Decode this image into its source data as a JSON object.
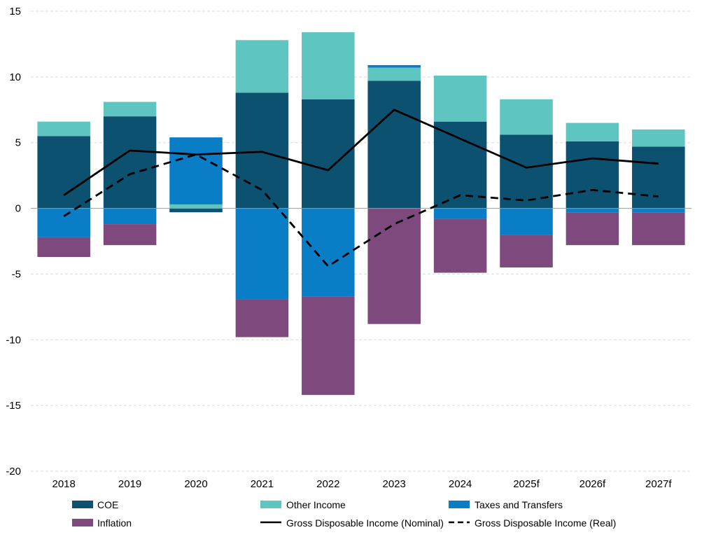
{
  "chart_data": {
    "type": "bar",
    "stacked": true,
    "categories": [
      "2018",
      "2019",
      "2020",
      "2021",
      "2022",
      "2023",
      "2024",
      "2025f",
      "2026f",
      "2027f"
    ],
    "ylim": [
      -20,
      15
    ],
    "yticks": [
      15,
      10,
      5,
      0,
      -5,
      -10,
      -15,
      -20
    ],
    "grid": true,
    "legend_position": "bottom",
    "series": [
      {
        "name": "COE",
        "color": "#0d5170",
        "values": [
          5.5,
          7.0,
          -0.3,
          8.8,
          8.3,
          9.7,
          6.6,
          5.6,
          5.1,
          4.7
        ]
      },
      {
        "name": "Other Income",
        "color": "#5ec5c0",
        "values": [
          1.1,
          1.1,
          0.3,
          4.0,
          5.1,
          1.0,
          3.5,
          2.7,
          1.4,
          1.3
        ]
      },
      {
        "name": "Taxes and Transfers",
        "color": "#0a7dc7",
        "values": [
          -2.2,
          -1.2,
          5.1,
          -6.9,
          -6.7,
          0.2,
          -0.8,
          -2.0,
          -0.3,
          -0.3
        ]
      },
      {
        "name": "Inflation",
        "color": "#7e4a7e",
        "values": [
          -1.5,
          -1.6,
          0.0,
          -2.9,
          -7.5,
          -8.8,
          -4.1,
          -2.5,
          -2.5,
          -2.5
        ]
      }
    ],
    "lines": [
      {
        "name": "Gross Disposable Income (Nominal)",
        "color": "#000000",
        "style": "solid",
        "values": [
          1.0,
          4.4,
          4.1,
          4.3,
          2.9,
          7.5,
          5.3,
          3.1,
          3.8,
          3.4
        ]
      },
      {
        "name": "Gross Disposable Income (Real)",
        "color": "#000000",
        "style": "dashed",
        "values": [
          -0.6,
          2.6,
          4.1,
          1.4,
          -4.4,
          -1.2,
          1.0,
          0.6,
          1.4,
          0.9
        ]
      }
    ]
  }
}
